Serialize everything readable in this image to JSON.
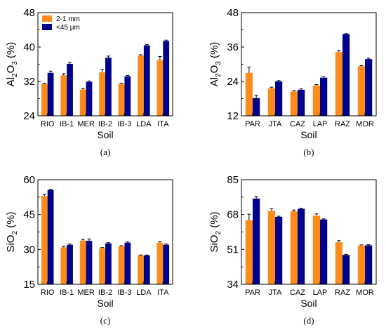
{
  "figure": {
    "colors": {
      "series_1": "#FF8C1A",
      "series_2": "#00008B",
      "errorbar": "#000000"
    }
  },
  "chart_data": [
    {
      "type": "bar",
      "panel_label": "(a)",
      "xlabel": "Soil",
      "ylabel": {
        "main": "Al",
        "sub1": "2",
        "mid": "O",
        "sub2": "3",
        "tail": " (%)"
      },
      "ylim": [
        24,
        48
      ],
      "yticks": [
        24,
        32,
        40,
        48
      ],
      "categories": [
        "RIO",
        "IB-1",
        "MER",
        "IB-2",
        "IB-3",
        "LDA",
        "ITA"
      ],
      "series": [
        {
          "name": "2-1 mm",
          "values": [
            31.4,
            33.4,
            30.1,
            34.1,
            31.4,
            38.0,
            37.0
          ],
          "errors": [
            0.2,
            0.4,
            0.2,
            0.7,
            0.2,
            0.2,
            0.8
          ]
        },
        {
          "name": "<45 μm",
          "values": [
            34.0,
            36.1,
            31.9,
            37.5,
            33.2,
            40.4,
            41.4
          ],
          "errors": [
            0.4,
            0.3,
            0.2,
            0.4,
            0.2,
            0.2,
            0.2
          ]
        }
      ],
      "legend": "top-left"
    },
    {
      "type": "bar",
      "panel_label": "(b)",
      "xlabel": "Soil",
      "ylabel": {
        "main": "Al",
        "sub1": "2",
        "mid": "O",
        "sub2": "3",
        "tail": " (%)"
      },
      "ylim": [
        12,
        48
      ],
      "yticks": [
        12,
        24,
        36,
        48
      ],
      "categories": [
        "PAR",
        "JTA",
        "CAZ",
        "LAP",
        "RAZ",
        "MOR"
      ],
      "series": [
        {
          "name": "2-1 mm",
          "values": [
            27.0,
            21.6,
            20.5,
            22.6,
            34.2,
            29.3
          ],
          "errors": [
            2.0,
            0.4,
            0.3,
            0.3,
            0.6,
            0.2
          ]
        },
        {
          "name": "<45 μm",
          "values": [
            18.2,
            24.0,
            21.1,
            25.3,
            40.5,
            31.8
          ],
          "errors": [
            1.0,
            0.3,
            0.3,
            0.3,
            0.2,
            0.3
          ]
        }
      ]
    },
    {
      "type": "bar",
      "panel_label": "(c)",
      "xlabel": "Soil",
      "ylabel": {
        "main": "SiO",
        "sub1": "2",
        "mid": "",
        "sub2": "",
        "tail": " (%)"
      },
      "ylim": [
        15,
        60
      ],
      "yticks": [
        15,
        30,
        45,
        60
      ],
      "categories": [
        "RIO",
        "IB-1",
        "MER",
        "IB-2",
        "IB-3",
        "LDA",
        "ITA"
      ],
      "series": [
        {
          "name": "2-1 mm",
          "values": [
            53.0,
            30.9,
            33.8,
            30.5,
            31.3,
            27.4,
            32.9
          ],
          "errors": [
            0.6,
            0.4,
            0.5,
            0.3,
            0.3,
            0.2,
            0.4
          ]
        },
        {
          "name": "<45 μm",
          "values": [
            55.6,
            32.0,
            33.7,
            32.6,
            32.9,
            27.4,
            32.0
          ],
          "errors": [
            0.3,
            0.3,
            0.8,
            0.3,
            0.3,
            0.2,
            0.3
          ]
        }
      ]
    },
    {
      "type": "bar",
      "panel_label": "(d)",
      "xlabel": "Soil",
      "ylabel": {
        "main": "SiO",
        "sub1": "2",
        "mid": "",
        "sub2": "",
        "tail": " (%)"
      },
      "ylim": [
        34,
        85
      ],
      "yticks": [
        34,
        51,
        68,
        85
      ],
      "categories": [
        "PAR",
        "JTA",
        "CAZ",
        "LAP",
        "RAZ",
        "MOR"
      ],
      "series": [
        {
          "name": "2-1 mm",
          "values": [
            65.2,
            69.8,
            69.6,
            67.4,
            54.5,
            52.9
          ],
          "errors": [
            3.0,
            1.0,
            0.6,
            0.9,
            0.8,
            0.3
          ]
        },
        {
          "name": "<45 μm",
          "values": [
            75.8,
            66.9,
            70.8,
            65.6,
            48.3,
            53.0
          ],
          "errors": [
            1.0,
            0.3,
            0.3,
            0.3,
            0.3,
            0.3
          ]
        }
      ]
    }
  ]
}
